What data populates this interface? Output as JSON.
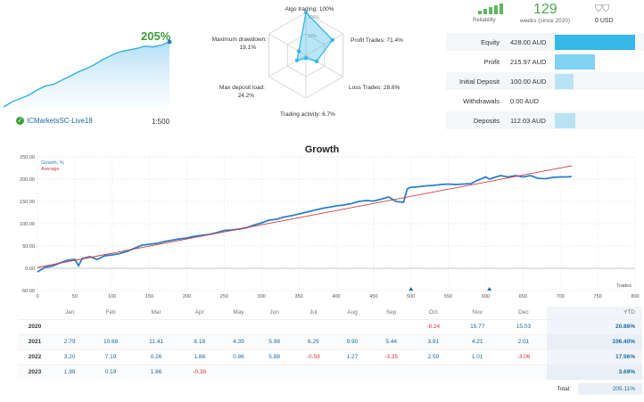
{
  "summary": {
    "growth_pct": "205%",
    "account_name": "ICMarketsSC-Live18",
    "leverage": "1:500",
    "mini_growth": [
      0,
      6,
      10,
      14,
      20,
      25,
      27,
      32,
      37,
      42,
      46,
      51,
      57,
      62,
      66,
      68,
      70,
      73,
      72,
      74,
      78
    ]
  },
  "radar": {
    "axes": [
      {
        "label": "Algo trading: 100%",
        "value": 100
      },
      {
        "label": "Profit Trades: 71.4%",
        "value": 71.4
      },
      {
        "label": "Loss Trades: 28.6%",
        "value": 28.6
      },
      {
        "label": "Trading activity: 6.7%",
        "value": 6.7
      },
      {
        "label": "Max deposit load:",
        "sub": "24.2%",
        "value": 24.2
      },
      {
        "label": "Maximum drawdown:",
        "sub": "19.1%",
        "value": 19.1
      }
    ],
    "ring_labels": [
      "100%",
      "50%"
    ],
    "color": "#35b8e8"
  },
  "reliability": {
    "label": "Reliability"
  },
  "weeks": {
    "value": "129",
    "label": "weeks (since 2020)"
  },
  "usd": {
    "value": "0 USD"
  },
  "stats": [
    {
      "label": "Equity",
      "value": "428.00 AUD",
      "ratio": 1.0
    },
    {
      "label": "Profit",
      "value": "215.97 AUD",
      "ratio": 0.5
    },
    {
      "label": "Initial Deposit",
      "value": "100.00 AUD",
      "ratio": 0.23
    },
    {
      "label": "Withdrawals",
      "value": "0.00 AUD",
      "ratio": 0.0
    },
    {
      "label": "Deposits",
      "value": "112.03 AUD",
      "ratio": 0.26
    }
  ],
  "chart_data": {
    "type": "line",
    "title": "Growth",
    "xlabel": "Trades",
    "ylabel": "",
    "xlim": [
      0,
      800
    ],
    "ylim": [
      -50,
      250
    ],
    "x_ticks": [
      0,
      50,
      100,
      150,
      200,
      250,
      300,
      350,
      400,
      450,
      500,
      550,
      600,
      650,
      700,
      750,
      800
    ],
    "y_ticks": [
      -50,
      0,
      50,
      100,
      150,
      200,
      250
    ],
    "y_tick_labels": [
      "-50.00",
      "0.00",
      "50.00",
      "100.00",
      "150.00",
      "200.00",
      "250.00"
    ],
    "legend": "top-left",
    "series": [
      {
        "name": "Growth, %",
        "color": "#2a7fc8",
        "x": [
          0,
          10,
          20,
          30,
          40,
          50,
          55,
          60,
          70,
          80,
          90,
          100,
          110,
          120,
          130,
          140,
          150,
          160,
          170,
          180,
          190,
          200,
          210,
          220,
          230,
          240,
          250,
          260,
          270,
          280,
          290,
          300,
          310,
          320,
          330,
          340,
          350,
          360,
          370,
          380,
          390,
          400,
          410,
          420,
          430,
          440,
          450,
          460,
          470,
          480,
          490,
          495,
          500,
          505,
          510,
          520,
          530,
          540,
          550,
          560,
          570,
          580,
          590,
          600,
          605,
          610,
          620,
          630,
          640,
          650,
          660,
          670,
          680,
          690,
          700,
          710,
          715
        ],
        "y": [
          -8,
          2,
          5,
          12,
          18,
          20,
          6,
          22,
          26,
          20,
          28,
          30,
          33,
          38,
          45,
          52,
          54,
          56,
          60,
          63,
          66,
          68,
          72,
          74,
          76,
          80,
          85,
          86,
          88,
          91,
          97,
          102,
          108,
          110,
          115,
          118,
          122,
          126,
          130,
          134,
          137,
          140,
          142,
          145,
          150,
          152,
          151,
          155,
          160,
          150,
          148,
          178,
          182,
          182,
          183,
          185,
          186,
          188,
          189,
          188,
          189,
          190,
          198,
          205,
          200,
          203,
          208,
          205,
          208,
          205,
          208,
          202,
          201,
          204,
          205,
          205,
          206
        ]
      },
      {
        "name": "Average",
        "color": "#d13a3a",
        "x": [
          0,
          715
        ],
        "y": [
          2,
          230
        ]
      }
    ],
    "markers": [
      500,
      605
    ]
  },
  "table": {
    "headers": [
      "",
      "Jan",
      "Feb",
      "Mar",
      "Apr",
      "May",
      "Jun",
      "Jul",
      "Aug",
      "Sep",
      "Oct",
      "Nov",
      "Dec",
      "YTD"
    ],
    "rows": [
      [
        "2020",
        "",
        "",
        "",
        "",
        "",
        "",
        "",
        "",
        "",
        "-8.24",
        "15.77",
        "15.03",
        "20.86%"
      ],
      [
        "2021",
        "2.79",
        "10.68",
        "11.41",
        "8.18",
        "4.39",
        "5.98",
        "6.29",
        "9.90",
        "5.44",
        "3.91",
        "4.21",
        "2.01",
        "106.40%"
      ],
      [
        "2022",
        "3.20",
        "7.19",
        "0.26",
        "1.88",
        "0.86",
        "5.88",
        "-0.59",
        "1.27",
        "-3.35",
        "2.59",
        "1.01",
        "-3.06",
        "17.96%"
      ],
      [
        "2023",
        "1.99",
        "0.19",
        "1.86",
        "-0.38",
        "",
        "",
        "",
        "",
        "",
        "",
        "",
        "",
        "3.69%"
      ]
    ],
    "total_label": "Total:",
    "total_value": "205.11%"
  }
}
